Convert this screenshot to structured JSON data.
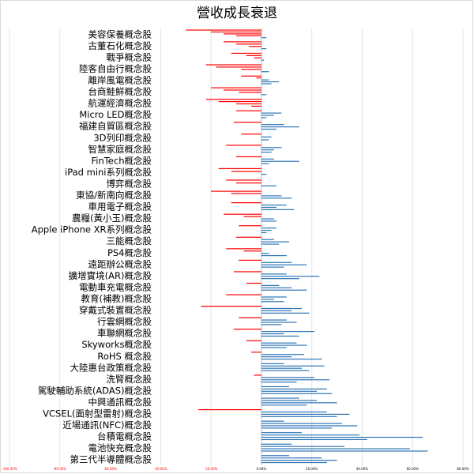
{
  "chart_data": {
    "type": "bar",
    "orientation": "horizontal",
    "title": "營收成長衰退",
    "xlabel": "",
    "ylabel": "",
    "xlim": [
      -1,
      0.8
    ],
    "grid": true,
    "x_ticks": [
      {
        "value": -1.0,
        "label": "-100.00%"
      },
      {
        "value": -0.8,
        "label": "-80.00%"
      },
      {
        "value": -0.6,
        "label": "-60.00%"
      },
      {
        "value": -0.4,
        "label": "-40.00%"
      },
      {
        "value": -0.2,
        "label": "-20.00%"
      },
      {
        "value": 0.0,
        "label": "0.00%"
      },
      {
        "value": 0.2,
        "label": "20.00%"
      },
      {
        "value": 0.4,
        "label": "40.00%"
      },
      {
        "value": 0.6,
        "label": "60.00%"
      },
      {
        "value": 0.8,
        "label": "80.00%"
      }
    ],
    "colors": {
      "positive": "#2e75b6",
      "negative": "#ff0000"
    },
    "categories": [
      {
        "label": "美容保養概念股",
        "values": [
          -0.3,
          -0.2,
          -0.15,
          -0.1,
          0.02
        ]
      },
      {
        "label": "古董石化概念股",
        "values": [
          -0.15,
          -0.1,
          -0.05,
          0.02
        ]
      },
      {
        "label": "戰爭概念股",
        "values": [
          -0.12,
          -0.06,
          -0.03,
          0.01
        ]
      },
      {
        "label": "陸客自由行概念股",
        "values": [
          -0.22,
          -0.18,
          -0.08,
          0.03
        ]
      },
      {
        "label": "離岸風電概念股",
        "values": [
          -0.08,
          -0.02,
          0.03,
          0.07,
          0.04
        ]
      },
      {
        "label": "台商鮭鮮概念股",
        "values": [
          -0.2,
          -0.15,
          -0.09,
          0.02
        ]
      },
      {
        "label": "航運經濟概念股",
        "values": [
          -0.22,
          -0.17,
          -0.1,
          -0.04
        ]
      },
      {
        "label": "Micro LED概念股",
        "values": [
          -0.1,
          0.08,
          0.05,
          0.02
        ]
      },
      {
        "label": "福建自貿區概念股",
        "values": [
          -0.11,
          0.09,
          0.15,
          0.06
        ]
      },
      {
        "label": "3D列印概念股",
        "values": [
          -0.08,
          0.04,
          0.03
        ]
      },
      {
        "label": "智慧家庭概念股",
        "values": [
          -0.14,
          0.08,
          0.05,
          0.04
        ]
      },
      {
        "label": "FinTech概念股",
        "values": [
          -0.1,
          0.05,
          0.15,
          0.03
        ]
      },
      {
        "label": "iPad mini系列概念股",
        "values": [
          -0.17,
          -0.12,
          0.02
        ]
      },
      {
        "label": "博弈概念股",
        "values": [
          -0.14,
          -0.1,
          0.06
        ]
      },
      {
        "label": "東協/新南向概念股",
        "values": [
          -0.2,
          -0.12,
          0.08,
          0.12
        ]
      },
      {
        "label": "車用電子概念股",
        "values": [
          -0.12,
          0.1,
          0.06,
          0.13
        ]
      },
      {
        "label": "農糧(黃小玉)概念股",
        "values": [
          -0.15,
          -0.07,
          0.05,
          0.06
        ]
      },
      {
        "label": "Apple iPhone XR系列概念股",
        "values": [
          -0.09,
          0.06,
          0.04,
          0.02
        ]
      },
      {
        "label": "三能概念股",
        "values": [
          -0.1,
          0.05,
          0.11,
          0.07
        ]
      },
      {
        "label": "PS4概念股",
        "values": [
          -0.14,
          -0.07,
          0.03,
          0.1
        ]
      },
      {
        "label": "遠距辦公概念股",
        "values": [
          -0.09,
          0.12,
          0.18,
          0.09
        ]
      },
      {
        "label": "擴增實境(AR)概念股",
        "values": [
          -0.11,
          0.1,
          0.23,
          0.15
        ]
      },
      {
        "label": "電動車充電概念股",
        "values": [
          -0.06,
          0.07,
          0.12,
          0.18
        ]
      },
      {
        "label": "教育(補教)概念股",
        "values": [
          -0.14,
          0.1,
          0.05,
          0.09
        ]
      },
      {
        "label": "穿戴式裝置概念股",
        "values": [
          -0.24,
          0.16,
          0.12,
          0.19
        ]
      },
      {
        "label": "行雲網概念股",
        "values": [
          -0.09,
          0.1,
          0.14,
          0.08
        ]
      },
      {
        "label": "車聯網概念股",
        "values": [
          -0.11,
          0.21,
          0.09,
          0.15
        ]
      },
      {
        "label": "Skyworks概念股",
        "values": [
          -0.06,
          0.14,
          0.18,
          0.1
        ]
      },
      {
        "label": "RoHS 概念股",
        "values": [
          -0.04,
          0.17,
          0.12,
          0.24
        ]
      },
      {
        "label": "大陸惠台政策概念股",
        "values": [
          0.09,
          0.25,
          0.16,
          0.19
        ]
      },
      {
        "label": "洗腎概念股",
        "values": [
          -0.03,
          0.21,
          0.27,
          0.14
        ]
      },
      {
        "label": "駕駛輔助系統(ADAS)概念股",
        "values": [
          0.11,
          0.26,
          0.22,
          0.28
        ]
      },
      {
        "label": "中興通訊概念股",
        "values": [
          0.15,
          0.22,
          0.3,
          0.18
        ]
      },
      {
        "label": "VCSEL(面射型雷射)概念股",
        "values": [
          -0.25,
          0.26,
          0.35,
          0.3
        ]
      },
      {
        "label": "近場通訊(NFC)概念股",
        "values": [
          0.09,
          0.32,
          0.38,
          0.28
        ]
      },
      {
        "label": "台積電概念股",
        "values": [
          0.16,
          0.39,
          0.64,
          0.42
        ]
      },
      {
        "label": "電池快充概念股",
        "values": [
          0.12,
          0.33,
          0.59,
          0.66
        ]
      },
      {
        "label": "第三代半導體概念股",
        "values": [
          0.11,
          0.24,
          0.3,
          0.26
        ]
      }
    ]
  }
}
